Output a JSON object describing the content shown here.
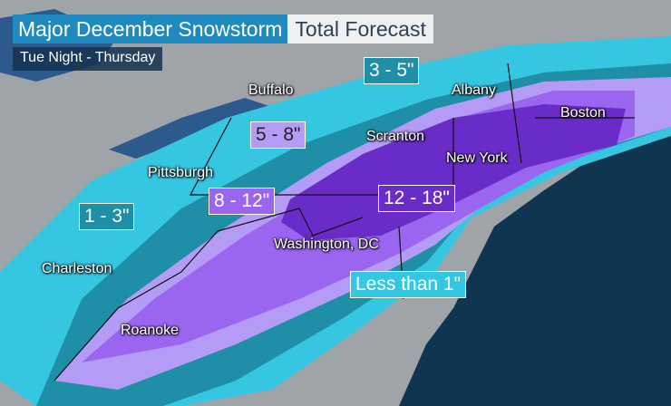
{
  "header": {
    "title": "Major December Snowstorm",
    "title_tag": "Total Forecast",
    "subtitle": "Tue Night - Thursday"
  },
  "cities": [
    "Buffalo",
    "Albany",
    "Boston",
    "Scranton",
    "New York",
    "Pittsburgh",
    "Washington, DC",
    "Charleston",
    "Roanoke"
  ],
  "amounts": [
    "3 - 5\"",
    "5 - 8\"",
    "8 - 12\"",
    "12 - 18\"",
    "1 - 3\"",
    "Less than 1\""
  ],
  "colors": {
    "land": "#9fa4a9",
    "ocean": "#0f3551",
    "lake": "#2c5a8c",
    "less_than_1": "#35c6e2",
    "1_3": "#1f8fa7",
    "3_5": "#2aa8c4",
    "5_8": "#b49cf6",
    "8_12": "#9b66ef",
    "12_18": "#6a2cc8",
    "title_bg": "#1f8ac0"
  }
}
